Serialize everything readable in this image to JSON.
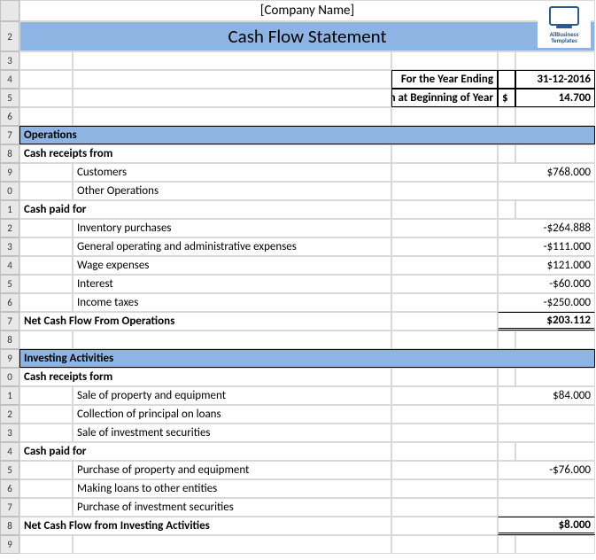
{
  "company": "[Company Name]",
  "title": "Cash Flow Statement",
  "logo": {
    "line1": "AllBusiness",
    "line2": "Templates"
  },
  "info": {
    "yearEndingLabel": "For the Year Ending",
    "yearEndingValue": "31-12-2016",
    "beginningCashLabel": "Cash at Beginning of Year",
    "currency": "$",
    "beginningCashValue": "14.700"
  },
  "operations": {
    "header": "Operations",
    "receiptsHeader": "Cash receipts from",
    "receipts": [
      {
        "label": "Customers",
        "value": "$768.000"
      },
      {
        "label": "Other Operations",
        "value": ""
      }
    ],
    "paidHeader": "Cash paid for",
    "paid": [
      {
        "label": "Inventory purchases",
        "value": "-$264.888"
      },
      {
        "label": "General operating and administrative expenses",
        "value": "-$111.000"
      },
      {
        "label": "Wage expenses",
        "value": "$121.000"
      },
      {
        "label": "Interest",
        "value": "-$60.000"
      },
      {
        "label": "Income taxes",
        "value": "-$250.000"
      }
    ],
    "netLabel": "Net Cash Flow From Operations",
    "netValue": "$203.112"
  },
  "investing": {
    "header": "Investing Activities",
    "receiptsHeader": "Cash receipts form",
    "receipts": [
      {
        "label": "Sale of property and equipment",
        "value": "$84.000"
      },
      {
        "label": "Collection of principal on loans",
        "value": ""
      },
      {
        "label": "Sale of investment securities",
        "value": ""
      }
    ],
    "paidHeader": "Cash paid for",
    "paid": [
      {
        "label": "Purchase of property and equipment",
        "value": "-$76.000"
      },
      {
        "label": "Making loans to other entities",
        "value": ""
      },
      {
        "label": "Purchase of investment securities",
        "value": ""
      }
    ],
    "netLabel": "Net Cash Flow from Investing Activities",
    "netValue": "$8.000"
  },
  "rowNumbers": [
    "",
    "2",
    "3",
    "4",
    "5",
    "6",
    "7",
    "8",
    "9",
    "0",
    "1",
    "2",
    "3",
    "4",
    "5",
    "6",
    "7",
    "8",
    "9",
    "0",
    "1",
    "2",
    "3",
    "4",
    "5",
    "6",
    "7",
    "8",
    "9"
  ],
  "colors": {
    "headerBlue": "#8eb4e3",
    "gridline": "#d9d9d9",
    "rowheadBg": "#e8e8e8",
    "border": "#000000"
  }
}
